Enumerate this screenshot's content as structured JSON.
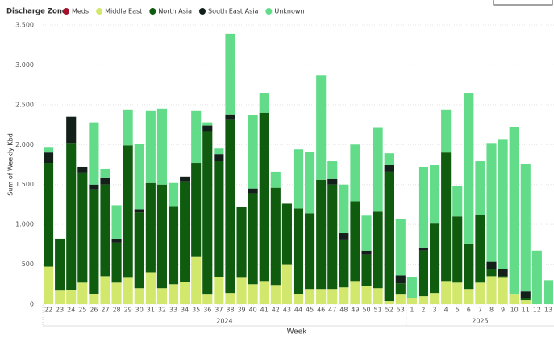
{
  "chart_data": {
    "type": "stacked_bar",
    "legend_title": "Discharge Zone",
    "x_label": "Week",
    "y_label": "Sum of Weekly Kbd",
    "x_group_labels": [
      "2024",
      "2025"
    ],
    "categories": [
      "22",
      "23",
      "24",
      "25",
      "26",
      "27",
      "28",
      "29",
      "30",
      "31",
      "32",
      "33",
      "34",
      "35",
      "36",
      "37",
      "38",
      "39",
      "40",
      "41",
      "42",
      "43",
      "44",
      "45",
      "46",
      "47",
      "48",
      "49",
      "50",
      "51",
      "52",
      "53",
      "1",
      "2",
      "3",
      "4",
      "5",
      "6",
      "7",
      "8",
      "9",
      "10",
      "11",
      "12",
      "13"
    ],
    "series": [
      {
        "name": "Meds",
        "color": "#a3122a",
        "values": [
          0,
          0,
          0,
          0,
          0,
          0,
          0,
          0,
          0,
          0,
          0,
          0,
          0,
          0,
          0,
          0,
          0,
          0,
          0,
          0,
          0,
          0,
          0,
          0,
          0,
          0,
          0,
          0,
          0,
          0,
          0,
          0,
          0,
          0,
          0,
          0,
          0,
          0,
          0,
          0,
          0,
          0,
          0,
          0,
          0
        ]
      },
      {
        "name": "Middle East",
        "color": "#d2e86d",
        "values": [
          470,
          170,
          180,
          270,
          130,
          350,
          270,
          330,
          200,
          400,
          200,
          250,
          280,
          600,
          120,
          340,
          140,
          330,
          250,
          290,
          240,
          500,
          130,
          190,
          190,
          190,
          210,
          290,
          230,
          200,
          40,
          120,
          80,
          100,
          140,
          290,
          270,
          190,
          270,
          350,
          330,
          120,
          50,
          0,
          0
        ]
      },
      {
        "name": "North Asia",
        "color": "#0f5c0f",
        "values": [
          1300,
          650,
          1840,
          1380,
          1310,
          1150,
          500,
          1660,
          950,
          1120,
          1300,
          980,
          1260,
          1170,
          2040,
          1460,
          2170,
          890,
          1140,
          2110,
          1220,
          760,
          1070,
          950,
          1370,
          1310,
          600,
          1000,
          390,
          960,
          1620,
          140,
          0,
          570,
          870,
          1610,
          830,
          570,
          850,
          90,
          20,
          0,
          30,
          0,
          0
        ]
      },
      {
        "name": "South East Asia",
        "color": "#13201a",
        "values": [
          130,
          0,
          330,
          70,
          60,
          80,
          50,
          0,
          40,
          0,
          0,
          0,
          60,
          0,
          80,
          80,
          70,
          0,
          60,
          0,
          0,
          0,
          0,
          0,
          0,
          70,
          80,
          0,
          50,
          0,
          80,
          100,
          0,
          40,
          0,
          0,
          0,
          0,
          0,
          90,
          90,
          0,
          80,
          0,
          0
        ]
      },
      {
        "name": "Unknown",
        "color": "#63dc8a",
        "values": [
          70,
          0,
          0,
          0,
          780,
          120,
          420,
          450,
          820,
          910,
          950,
          290,
          0,
          660,
          40,
          70,
          1010,
          0,
          920,
          250,
          200,
          0,
          740,
          770,
          1310,
          220,
          610,
          710,
          440,
          1050,
          150,
          710,
          260,
          1010,
          730,
          540,
          380,
          1890,
          670,
          1490,
          1630,
          2100,
          1600,
          670,
          300
        ]
      }
    ],
    "ylim": [
      0,
      3500
    ],
    "yticks": [
      0,
      500,
      {
        "value": 1000,
        "label": "1.000"
      },
      {
        "value": 1500,
        "label": "1.500"
      },
      {
        "value": 2000,
        "label": "2.000"
      },
      {
        "value": 2500,
        "label": "2.500"
      },
      {
        "value": 3000,
        "label": "3.000"
      },
      {
        "value": 3500,
        "label": "3.500"
      }
    ],
    "grid": true
  }
}
